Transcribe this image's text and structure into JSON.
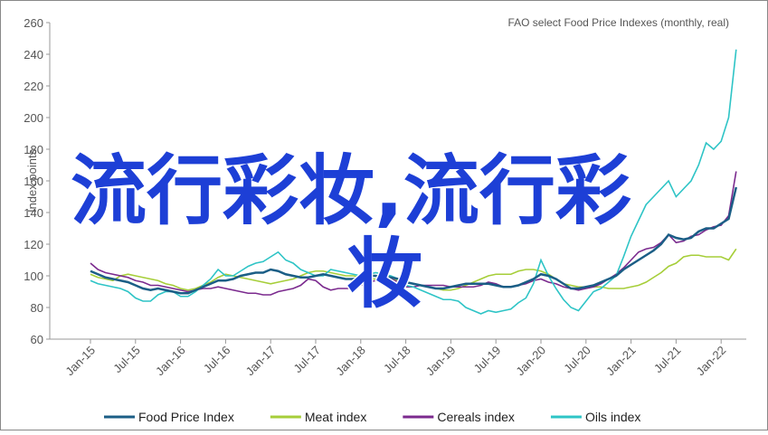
{
  "chart_data": {
    "type": "line",
    "title": "FAO select Food Price Indexes (monthly, real)",
    "y_label": "Index points",
    "categories": [
      "Jan-15",
      null,
      null,
      null,
      null,
      null,
      "Jul-15",
      null,
      null,
      null,
      null,
      null,
      "Jan-16",
      null,
      null,
      null,
      null,
      null,
      "Jul-16",
      null,
      null,
      null,
      null,
      null,
      "Jan-17",
      null,
      null,
      null,
      null,
      null,
      "Jul-17",
      null,
      null,
      null,
      null,
      null,
      "Jan-18",
      null,
      null,
      null,
      null,
      null,
      "Jul-18",
      null,
      null,
      null,
      null,
      null,
      "Jan-19",
      null,
      null,
      null,
      null,
      null,
      "Jul-19",
      null,
      null,
      null,
      null,
      null,
      "Jan-20",
      null,
      null,
      null,
      null,
      null,
      "Jul-20",
      null,
      null,
      null,
      null,
      null,
      "Jan-21",
      null,
      null,
      null,
      null,
      null,
      "Jul-21",
      null,
      null,
      null,
      null,
      null,
      "Jan-22",
      null,
      null
    ],
    "ylim": [
      60,
      260
    ],
    "yticks": [
      60,
      80,
      100,
      120,
      140,
      160,
      180,
      200,
      220,
      240,
      260
    ],
    "legend": "bottom",
    "series": [
      {
        "name": "Food Price Index",
        "color": "#1b5e86",
        "values": [
          103,
          101,
          99,
          98,
          97,
          96,
          94,
          92,
          91,
          92,
          91,
          90,
          89,
          89,
          91,
          93,
          95,
          97,
          97,
          98,
          100,
          101,
          102,
          102,
          104,
          103,
          101,
          100,
          99,
          99,
          100,
          101,
          100,
          99,
          98,
          98,
          99,
          100,
          100,
          99,
          99,
          98,
          96,
          95,
          94,
          93,
          92,
          92,
          93,
          94,
          95,
          95,
          95,
          95,
          94,
          93,
          93,
          94,
          96,
          98,
          101,
          100,
          98,
          95,
          92,
          92,
          93,
          94,
          96,
          98,
          100,
          104,
          107,
          110,
          113,
          116,
          120,
          126,
          124,
          123,
          124,
          128,
          130,
          130,
          133,
          136,
          156
        ]
      },
      {
        "name": "Meat index",
        "color": "#a6ce39",
        "values": [
          101,
          99,
          98,
          97,
          100,
          101,
          100,
          99,
          98,
          97,
          95,
          94,
          92,
          91,
          92,
          94,
          96,
          99,
          101,
          100,
          99,
          98,
          97,
          96,
          95,
          96,
          97,
          98,
          100,
          102,
          103,
          103,
          102,
          101,
          100,
          100,
          99,
          98,
          98,
          98,
          98,
          97,
          96,
          95,
          94,
          93,
          92,
          91,
          91,
          92,
          94,
          96,
          98,
          100,
          101,
          101,
          101,
          103,
          104,
          104,
          103,
          101,
          98,
          95,
          94,
          93,
          93,
          93,
          93,
          92,
          92,
          92,
          93,
          94,
          96,
          99,
          102,
          106,
          108,
          112,
          113,
          113,
          112,
          112,
          112,
          110,
          117
        ]
      },
      {
        "name": "Cereals index",
        "color": "#7b2a8e",
        "values": [
          108,
          104,
          102,
          101,
          100,
          99,
          97,
          96,
          94,
          94,
          93,
          92,
          91,
          90,
          91,
          92,
          92,
          93,
          92,
          91,
          90,
          89,
          89,
          88,
          88,
          90,
          91,
          92,
          94,
          98,
          97,
          93,
          91,
          92,
          92,
          92,
          94,
          96,
          97,
          98,
          98,
          96,
          93,
          93,
          94,
          94,
          94,
          94,
          93,
          93,
          93,
          93,
          94,
          96,
          95,
          93,
          93,
          94,
          95,
          97,
          98,
          96,
          95,
          93,
          92,
          91,
          92,
          93,
          95,
          98,
          101,
          105,
          110,
          115,
          117,
          118,
          121,
          126,
          121,
          122,
          125,
          126,
          129,
          131,
          132,
          138,
          166
        ]
      },
      {
        "name": "Oils index",
        "color": "#2ec4c6",
        "values": [
          97,
          95,
          94,
          93,
          92,
          90,
          86,
          84,
          84,
          88,
          90,
          90,
          87,
          87,
          90,
          94,
          98,
          104,
          100,
          100,
          103,
          106,
          108,
          109,
          112,
          115,
          110,
          108,
          104,
          102,
          100,
          100,
          104,
          103,
          102,
          101,
          100,
          101,
          102,
          101,
          100,
          98,
          94,
          93,
          91,
          89,
          87,
          85,
          85,
          84,
          80,
          78,
          76,
          78,
          77,
          78,
          79,
          83,
          86,
          95,
          110,
          100,
          92,
          85,
          80,
          78,
          84,
          90,
          92,
          96,
          100,
          112,
          125,
          135,
          145,
          150,
          155,
          160,
          150,
          155,
          160,
          170,
          184,
          180,
          185,
          200,
          243
        ]
      }
    ]
  },
  "watermark": {
    "lines": [
      "流行彩妆,流行彩",
      "妆"
    ]
  }
}
